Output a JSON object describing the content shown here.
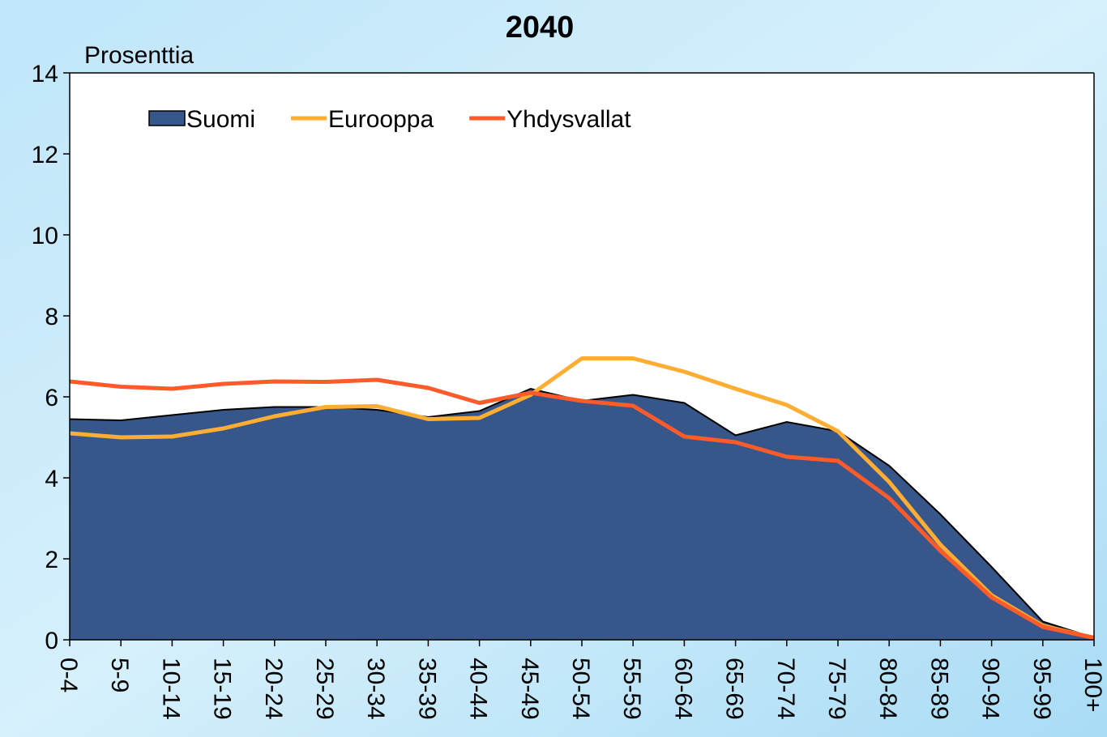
{
  "chart_data": {
    "type": "area-line",
    "title": "2040",
    "y_label": "Prosenttia",
    "categories": [
      "0-4",
      "5-9",
      "10-14",
      "15-19",
      "20-24",
      "25-29",
      "30-34",
      "35-39",
      "40-44",
      "45-49",
      "50-54",
      "55-59",
      "60-64",
      "65-69",
      "70-74",
      "75-79",
      "80-84",
      "85-89",
      "90-94",
      "95-99",
      "100+"
    ],
    "series": [
      {
        "name": "Suomi",
        "kind": "area",
        "color": "#37578a",
        "values": [
          5.45,
          5.42,
          5.55,
          5.68,
          5.75,
          5.75,
          5.68,
          5.5,
          5.65,
          6.2,
          5.9,
          6.05,
          5.85,
          5.05,
          5.38,
          5.15,
          4.3,
          3.1,
          1.8,
          0.45,
          0.05
        ]
      },
      {
        "name": "Eurooppa",
        "kind": "line",
        "color": "#ffad33",
        "values": [
          5.1,
          5.0,
          5.02,
          5.22,
          5.52,
          5.75,
          5.77,
          5.45,
          5.48,
          6.05,
          6.95,
          6.95,
          6.62,
          6.2,
          5.8,
          5.15,
          3.9,
          2.35,
          1.1,
          0.35,
          0.05
        ]
      },
      {
        "name": "Yhdysvallat",
        "kind": "line",
        "color": "#ff5a2a",
        "values": [
          6.38,
          6.25,
          6.2,
          6.32,
          6.38,
          6.37,
          6.42,
          6.22,
          5.85,
          6.1,
          5.9,
          5.78,
          5.02,
          4.88,
          4.52,
          4.42,
          3.5,
          2.2,
          1.05,
          0.32,
          0.05
        ]
      }
    ],
    "ylim": [
      0,
      14
    ],
    "yticks": [
      0,
      2,
      4,
      6,
      8,
      10,
      12,
      14
    ],
    "legend": "top-left"
  }
}
